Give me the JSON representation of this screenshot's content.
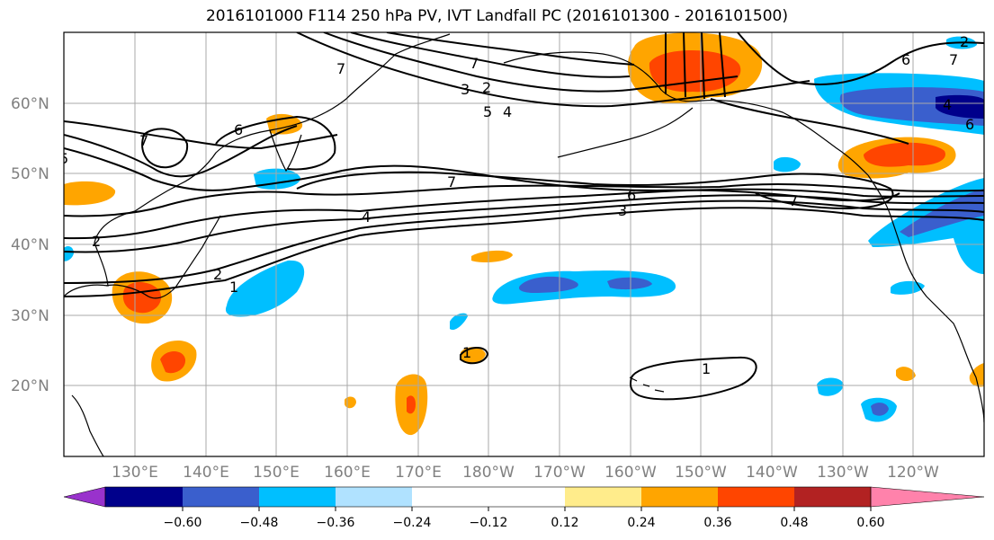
{
  "title": "2016101000 F114 250 hPa PV, IVT Landfall PC (2016101300 - 2016101500)",
  "map": {
    "lat_labels": [
      "60°N",
      "50°N",
      "40°N",
      "30°N",
      "20°N"
    ],
    "lon_labels": [
      "130°E",
      "140°E",
      "150°E",
      "160°E",
      "170°E",
      "180°W",
      "170°W",
      "160°W",
      "150°W",
      "140°W",
      "130°W",
      "120°W"
    ],
    "lon_range": [
      120,
      250
    ],
    "lat_range": [
      10,
      70
    ],
    "contour_levels": [
      "1",
      "2",
      "3",
      "4",
      "5",
      "6",
      "7"
    ]
  },
  "colorbar": {
    "tick_labels": [
      "−0.60",
      "−0.48",
      "−0.36",
      "−0.24",
      "−0.12",
      "0.12",
      "0.24",
      "0.36",
      "0.48",
      "0.60"
    ],
    "colors": [
      "#9932cc",
      "#00008b",
      "#3a5fcd",
      "#00bfff",
      "#b0e2ff",
      "#ffffff",
      "#ffec8b",
      "#ffa500",
      "#ff4500",
      "#b22222",
      "#ff82ab"
    ],
    "extend": "both"
  }
}
